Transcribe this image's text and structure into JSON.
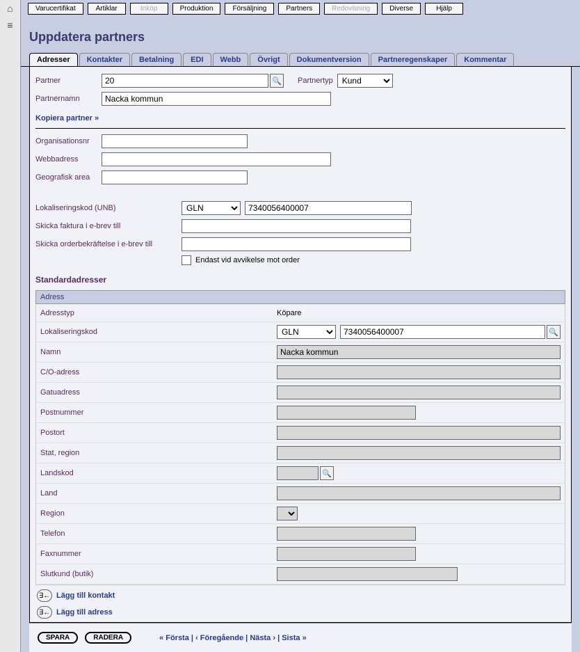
{
  "topTabs": [
    {
      "label": "Varucertifikat",
      "disabled": false
    },
    {
      "label": "Artiklar",
      "disabled": false
    },
    {
      "label": "Inköp",
      "disabled": true
    },
    {
      "label": "Produktion",
      "disabled": false
    },
    {
      "label": "Försäljning",
      "disabled": false
    },
    {
      "label": "Partners",
      "disabled": false
    },
    {
      "label": "Redovisning",
      "disabled": true
    },
    {
      "label": "Diverse",
      "disabled": false
    },
    {
      "label": "Hjälp",
      "disabled": false
    }
  ],
  "pageTitle": "Uppdatera partners",
  "subTabs": [
    {
      "label": "Adresser",
      "active": true
    },
    {
      "label": "Kontakter"
    },
    {
      "label": "Betalning"
    },
    {
      "label": "EDI"
    },
    {
      "label": "Webb"
    },
    {
      "label": "Övrigt"
    },
    {
      "label": "Dokumentversion"
    },
    {
      "label": "Partneregenskaper"
    },
    {
      "label": "Kommentar"
    }
  ],
  "labels": {
    "partner": "Partner",
    "partnertyp": "Partnertyp",
    "partnernamn": "Partnernamn",
    "kopiera": "Kopiera partner »",
    "orgnr": "Organisationsnr",
    "webb": "Webbadress",
    "geo": "Geografisk area",
    "lokal": "Lokaliseringskod (UNB)",
    "faktura": "Skicka faktura i e-brev till",
    "orderbek": "Skicka orderbekräftelse i e-brev till",
    "avvikelse": "Endast vid avvikelse mot order",
    "standard": "Standardadresser",
    "adress": "Adress",
    "adresstyp": "Adresstyp",
    "lokalkod": "Lokaliseringskod",
    "namn": "Namn",
    "co": "C/O-adress",
    "gatu": "Gatuadress",
    "postnr": "Postnummer",
    "postort": "Postort",
    "stat": "Stat, region",
    "landskod": "Landskod",
    "land": "Land",
    "region": "Region",
    "telefon": "Telefon",
    "fax": "Faxnummer",
    "slutkund": "Slutkund (butik)",
    "addKontakt": "Lägg till kontakt",
    "addAdress": "Lägg till adress",
    "spara": "SPARA",
    "radera": "RADERA",
    "forsta": "« Första",
    "foreg": "‹ Föregående",
    "nasta": "Nästa ›",
    "sista": "Sista »"
  },
  "values": {
    "partner": "20",
    "partnertyp": "Kund",
    "partnernamn": "Nacka kommun",
    "orgnr": "",
    "webb": "",
    "geo": "",
    "lokalSel": "GLN",
    "lokalVal": "7340056400007",
    "faktura": "",
    "orderbek": "",
    "adresstyp": "Köpare",
    "addrLokalSel": "GLN",
    "addrLokalVal": "7340056400007",
    "addrNamn": "Nacka kommun",
    "co": "",
    "gatu": "",
    "postnr": "",
    "postort": "",
    "stat": "",
    "landskod": "",
    "land": "",
    "region": "",
    "telefon": "",
    "fax": "",
    "slutkund": ""
  },
  "colors": {
    "pageBg": "#c8cee2",
    "formBg": "#f0f2f8",
    "labelColor": "#5a2a5a",
    "linkColor": "#2a3a8a",
    "readonlyBg": "#d8d8d8"
  }
}
